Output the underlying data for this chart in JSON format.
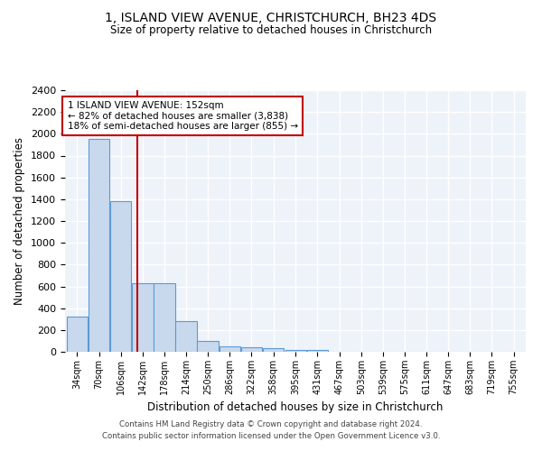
{
  "title": "1, ISLAND VIEW AVENUE, CHRISTCHURCH, BH23 4DS",
  "subtitle": "Size of property relative to detached houses in Christchurch",
  "xlabel": "Distribution of detached houses by size in Christchurch",
  "ylabel": "Number of detached properties",
  "bar_labels": [
    "34sqm",
    "70sqm",
    "106sqm",
    "142sqm",
    "178sqm",
    "214sqm",
    "250sqm",
    "286sqm",
    "322sqm",
    "358sqm",
    "395sqm",
    "431sqm",
    "467sqm",
    "503sqm",
    "539sqm",
    "575sqm",
    "611sqm",
    "647sqm",
    "683sqm",
    "719sqm",
    "755sqm"
  ],
  "bar_values": [
    320,
    1950,
    1380,
    630,
    630,
    280,
    100,
    50,
    40,
    30,
    20,
    20,
    0,
    0,
    0,
    0,
    0,
    0,
    0,
    0,
    0
  ],
  "bar_color": "#c9d9ed",
  "bar_edge_color": "#5b9bd5",
  "bin_width": 36,
  "bin_starts": [
    34,
    70,
    106,
    142,
    178,
    214,
    250,
    286,
    322,
    358,
    395,
    431,
    467,
    503,
    539,
    575,
    611,
    647,
    683,
    719,
    755
  ],
  "red_line_x": 152,
  "red_line_color": "#c00000",
  "ylim": [
    0,
    2400
  ],
  "yticks": [
    0,
    200,
    400,
    600,
    800,
    1000,
    1200,
    1400,
    1600,
    1800,
    2000,
    2200,
    2400
  ],
  "annotation_title": "1 ISLAND VIEW AVENUE: 152sqm",
  "annotation_line1": "← 82% of detached houses are smaller (3,838)",
  "annotation_line2": "18% of semi-detached houses are larger (855) →",
  "annotation_box_color": "#ffffff",
  "annotation_box_edge": "#c00000",
  "background_color": "#eef2f9",
  "grid_color": "#ffffff",
  "footer_line1": "Contains HM Land Registry data © Crown copyright and database right 2024.",
  "footer_line2": "Contains public sector information licensed under the Open Government Licence v3.0."
}
